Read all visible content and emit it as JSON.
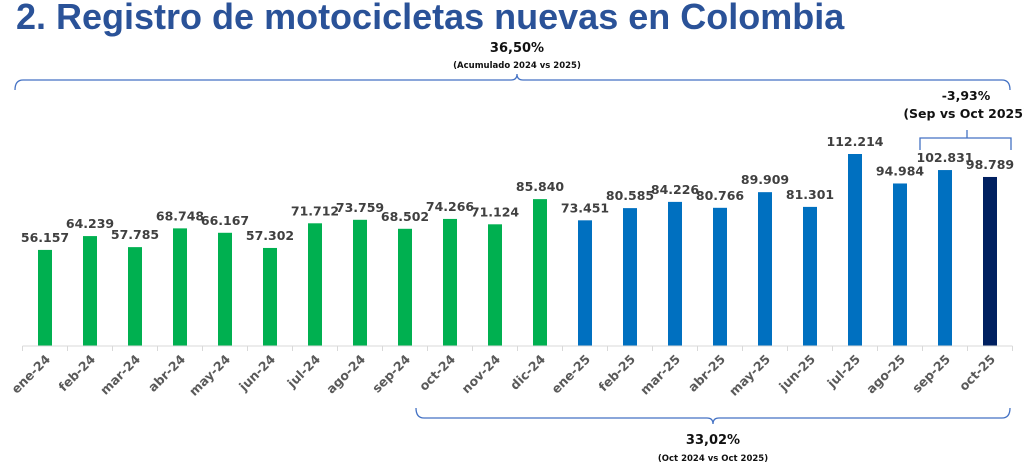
{
  "title": "2. Registro de motocicletas nuevas en Colombia",
  "chart_data": {
    "type": "bar",
    "title": "2. Registro de motocicletas nuevas en Colombia",
    "xlabel": "",
    "ylabel": "",
    "ylim": [
      0,
      115000
    ],
    "grid": false,
    "categories": [
      "ene-24",
      "feb-24",
      "mar-24",
      "abr-24",
      "may-24",
      "jun-24",
      "jul-24",
      "ago-24",
      "sep-24",
      "oct-24",
      "nov-24",
      "dic-24",
      "ene-25",
      "feb-25",
      "mar-25",
      "abr-25",
      "may-25",
      "jun-25",
      "jul-25",
      "ago-25",
      "sep-25",
      "oct-25"
    ],
    "values": [
      56157,
      64239,
      57785,
      68748,
      66167,
      57302,
      71712,
      73759,
      68502,
      74266,
      71124,
      85840,
      73451,
      80585,
      84226,
      80766,
      89909,
      81301,
      112214,
      94984,
      102831,
      98789
    ],
    "data_labels": [
      "56.157",
      "64.239",
      "57.785",
      "68.748",
      "66.167",
      "57.302",
      "71.712",
      "73.759",
      "68.502",
      "74.266",
      "71.124",
      "85.840",
      "73.451",
      "80.585",
      "84.226",
      "80.766",
      "89.909",
      "81.301",
      "112.214",
      "94.984",
      "102.831",
      "98.789"
    ],
    "colors": {
      "2024": "#00b050",
      "2025": "#0070c0",
      "highlight": "#002060",
      "title": "#2a5298",
      "bracket": "#4472c4"
    },
    "annotations": [
      {
        "value": "36,50%",
        "label": "(Acumulado 2024 vs 2025)",
        "from": "ene-24",
        "to": "oct-25"
      },
      {
        "value": "-3,93%",
        "label": "(Sep vs Oct 2025)",
        "from": "sep-25",
        "to": "oct-25"
      },
      {
        "value": "33,02%",
        "label": "(Oct 2024 vs Oct 2025)",
        "from": "oct-24",
        "to": "oct-25"
      }
    ]
  }
}
